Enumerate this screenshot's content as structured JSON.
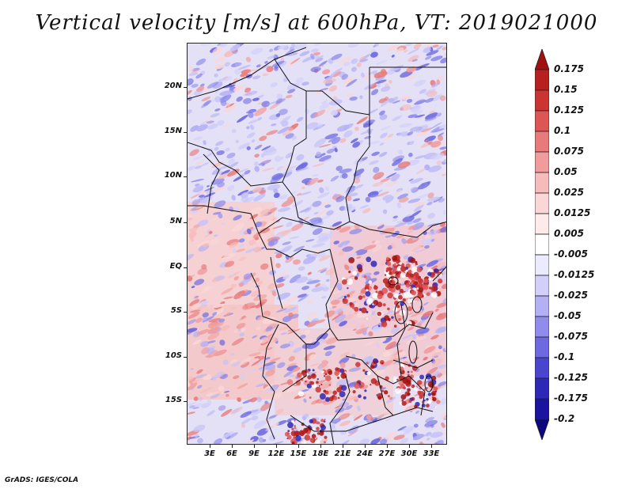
{
  "title": "Vertical velocity [m/s] at 600hPa, VT: 2019021000",
  "footer": "GrADS: IGES/COLA",
  "lat_labels": [
    "20N",
    "15N",
    "10N",
    "5N",
    "EQ",
    "5S",
    "10S",
    "15S"
  ],
  "lon_labels": [
    "3E",
    "6E",
    "9E",
    "12E",
    "15E",
    "18E",
    "21E",
    "24E",
    "27E",
    "30E",
    "33E"
  ],
  "colorbar": {
    "labels": [
      "0.175",
      "0.15",
      "0.125",
      "0.1",
      "0.075",
      "0.05",
      "0.025",
      "0.0125",
      "0.005",
      "-0.005",
      "-0.0125",
      "-0.025",
      "-0.05",
      "-0.075",
      "-0.1",
      "-0.125",
      "-0.175",
      "-0.2"
    ],
    "colors": [
      "#a01010",
      "#b82020",
      "#cc3333",
      "#dd5555",
      "#e87a7a",
      "#f09c9c",
      "#f6bcbc",
      "#fad6d6",
      "#fdeaea",
      "#ffffff",
      "#ebeaff",
      "#d2d0fa",
      "#b3b0f4",
      "#8f8cec",
      "#6d69e0",
      "#4a45cf",
      "#2e28b8",
      "#1a14a0",
      "#0c0880"
    ]
  }
}
